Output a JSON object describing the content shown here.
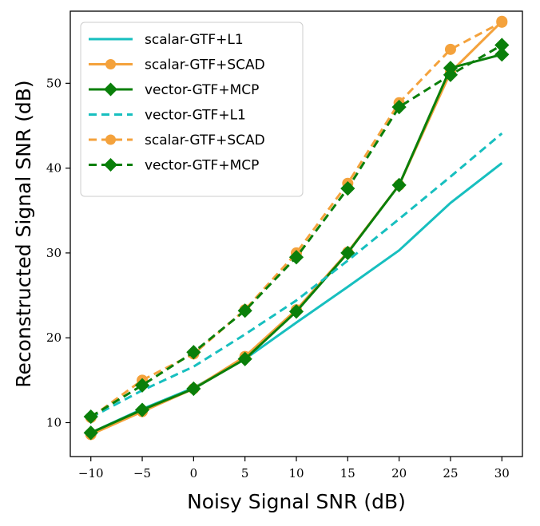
{
  "chart_data": {
    "type": "line",
    "xlabel": "Noisy Signal SNR (dB)",
    "ylabel": "Reconstructed Signal SNR (dB)",
    "x": [
      -10,
      -5,
      0,
      5,
      10,
      15,
      20,
      25,
      30
    ],
    "xlim": [
      -12,
      32
    ],
    "ylim": [
      6,
      58.5
    ],
    "xticks": [
      -10,
      -5,
      0,
      5,
      10,
      15,
      20,
      25,
      30
    ],
    "xtick_labels": [
      "−10",
      "−5",
      "0",
      "5",
      "10",
      "15",
      "20",
      "25",
      "30"
    ],
    "yticks": [
      10,
      20,
      30,
      40,
      50
    ],
    "ytick_labels": [
      "10",
      "20",
      "30",
      "40",
      "50"
    ],
    "grid": false,
    "legend_position": "top-left",
    "series": [
      {
        "name": "scalar-GTF+L1",
        "color": "#17bfbf",
        "linestyle": "solid",
        "marker": "none",
        "values": [
          8.8,
          11.6,
          14.1,
          17.5,
          21.8,
          26.0,
          30.3,
          35.9,
          40.6
        ]
      },
      {
        "name": "scalar-GTF+SCAD",
        "color": "#f4a23c",
        "linestyle": "solid",
        "marker": "circle",
        "values": [
          8.6,
          11.3,
          14.0,
          17.8,
          23.3,
          30.1,
          38.0,
          51.3,
          57.3
        ]
      },
      {
        "name": "vector-GTF+MCP",
        "color": "#0a7f0a",
        "linestyle": "solid",
        "marker": "diamond",
        "values": [
          8.8,
          11.5,
          14.0,
          17.5,
          23.1,
          30.0,
          38.0,
          51.8,
          53.4
        ]
      },
      {
        "name": "vector-GTF+L1",
        "color": "#17bfbf",
        "linestyle": "dashed",
        "marker": "none",
        "values": [
          10.6,
          13.8,
          16.6,
          20.4,
          24.4,
          29.1,
          34.0,
          39.0,
          44.1
        ]
      },
      {
        "name": "scalar-GTF+SCAD",
        "color": "#f4a23c",
        "linestyle": "dashed",
        "marker": "circle",
        "values": [
          10.6,
          15.0,
          18.1,
          23.3,
          30.0,
          38.2,
          47.7,
          54.0,
          57.2
        ]
      },
      {
        "name": "vector-GTF+MCP",
        "color": "#0a7f0a",
        "linestyle": "dashed",
        "marker": "diamond",
        "values": [
          10.7,
          14.4,
          18.3,
          23.2,
          29.5,
          37.6,
          47.2,
          51.0,
          54.5
        ]
      }
    ]
  }
}
